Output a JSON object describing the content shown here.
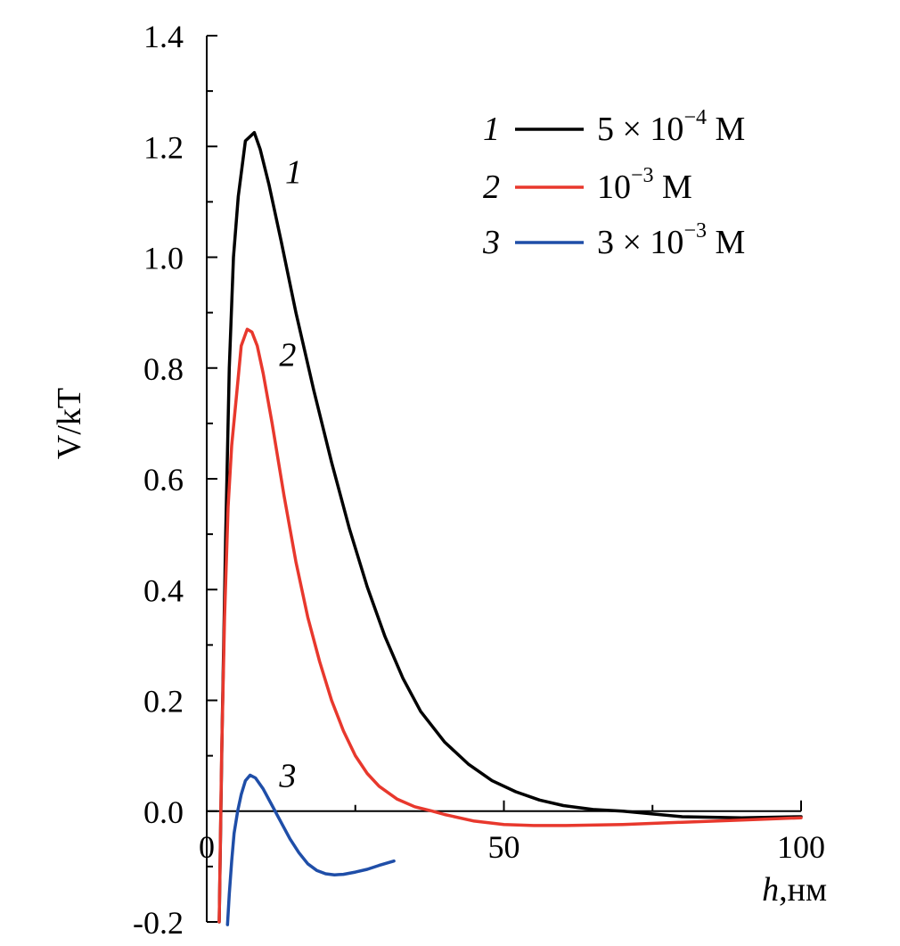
{
  "chart_data": {
    "type": "line",
    "xlabel_italic": "h",
    "xlabel_unit": ",нм",
    "ylabel": "V/kT",
    "xlim": [
      0,
      100
    ],
    "ylim": [
      -0.2,
      1.4
    ],
    "x_ticks": [
      "0",
      "50",
      "100"
    ],
    "y_ticks": [
      "-0.2",
      "0.0",
      "0.2",
      "0.4",
      "0.6",
      "0.8",
      "1.0",
      "1.2",
      "1.4"
    ],
    "grid": false,
    "legend_position": "top-right",
    "series": [
      {
        "name": "1",
        "legend": {
          "prefix": "5 × 10",
          "exponent": "−4",
          "suffix": " М"
        },
        "color": "#000000",
        "points": [
          [
            2.1,
            -0.2
          ],
          [
            2.6,
            0.15
          ],
          [
            3.2,
            0.5
          ],
          [
            3.8,
            0.8
          ],
          [
            4.5,
            1.0
          ],
          [
            5.3,
            1.11
          ],
          [
            6.5,
            1.21
          ],
          [
            8.0,
            1.225
          ],
          [
            9.0,
            1.195
          ],
          [
            10.5,
            1.13
          ],
          [
            12.5,
            1.03
          ],
          [
            15,
            0.9
          ],
          [
            18,
            0.76
          ],
          [
            21,
            0.63
          ],
          [
            24,
            0.51
          ],
          [
            27,
            0.405
          ],
          [
            30,
            0.315
          ],
          [
            33,
            0.24
          ],
          [
            36,
            0.18
          ],
          [
            40,
            0.125
          ],
          [
            44,
            0.085
          ],
          [
            48,
            0.055
          ],
          [
            52,
            0.035
          ],
          [
            56,
            0.02
          ],
          [
            60,
            0.01
          ],
          [
            65,
            0.003
          ],
          [
            70,
            0.0
          ],
          [
            75,
            -0.005
          ],
          [
            80,
            -0.01
          ],
          [
            90,
            -0.012
          ],
          [
            100,
            -0.01
          ]
        ]
      },
      {
        "name": "2",
        "legend": {
          "prefix": "10",
          "exponent": "−3",
          "suffix": " М"
        },
        "color": "#e8382d",
        "points": [
          [
            2.1,
            -0.2
          ],
          [
            2.5,
            0.1
          ],
          [
            3.0,
            0.35
          ],
          [
            3.6,
            0.55
          ],
          [
            4.2,
            0.66
          ],
          [
            5.0,
            0.75
          ],
          [
            5.8,
            0.84
          ],
          [
            6.8,
            0.87
          ],
          [
            7.6,
            0.865
          ],
          [
            8.5,
            0.84
          ],
          [
            9.5,
            0.79
          ],
          [
            11,
            0.7
          ],
          [
            13,
            0.57
          ],
          [
            15,
            0.45
          ],
          [
            17,
            0.35
          ],
          [
            19,
            0.27
          ],
          [
            21,
            0.2
          ],
          [
            23,
            0.145
          ],
          [
            25,
            0.1
          ],
          [
            27,
            0.068
          ],
          [
            29,
            0.045
          ],
          [
            32,
            0.022
          ],
          [
            35,
            0.008
          ],
          [
            38,
            0.0
          ],
          [
            40,
            -0.006
          ],
          [
            45,
            -0.018
          ],
          [
            50,
            -0.024
          ],
          [
            55,
            -0.026
          ],
          [
            60,
            -0.026
          ],
          [
            70,
            -0.024
          ],
          [
            80,
            -0.02
          ],
          [
            90,
            -0.016
          ],
          [
            100,
            -0.012
          ]
        ]
      },
      {
        "name": "3",
        "legend": {
          "prefix": "3 × 10",
          "exponent": "−3",
          "suffix": " М"
        },
        "color": "#1f4ea8",
        "points": [
          [
            3.5,
            -0.205
          ],
          [
            3.8,
            -0.15
          ],
          [
            4.2,
            -0.09
          ],
          [
            4.6,
            -0.04
          ],
          [
            5.2,
            0.0
          ],
          [
            5.8,
            0.03
          ],
          [
            6.5,
            0.055
          ],
          [
            7.3,
            0.065
          ],
          [
            8.2,
            0.06
          ],
          [
            9.5,
            0.04
          ],
          [
            11,
            0.01
          ],
          [
            12.5,
            -0.02
          ],
          [
            14,
            -0.05
          ],
          [
            15.5,
            -0.075
          ],
          [
            17,
            -0.095
          ],
          [
            18.5,
            -0.107
          ],
          [
            20,
            -0.113
          ],
          [
            21.5,
            -0.115
          ],
          [
            23,
            -0.114
          ],
          [
            25,
            -0.11
          ],
          [
            27,
            -0.105
          ],
          [
            29,
            -0.098
          ],
          [
            31.5,
            -0.09
          ]
        ]
      }
    ],
    "curve_labels": [
      "1",
      "2",
      "3"
    ]
  }
}
